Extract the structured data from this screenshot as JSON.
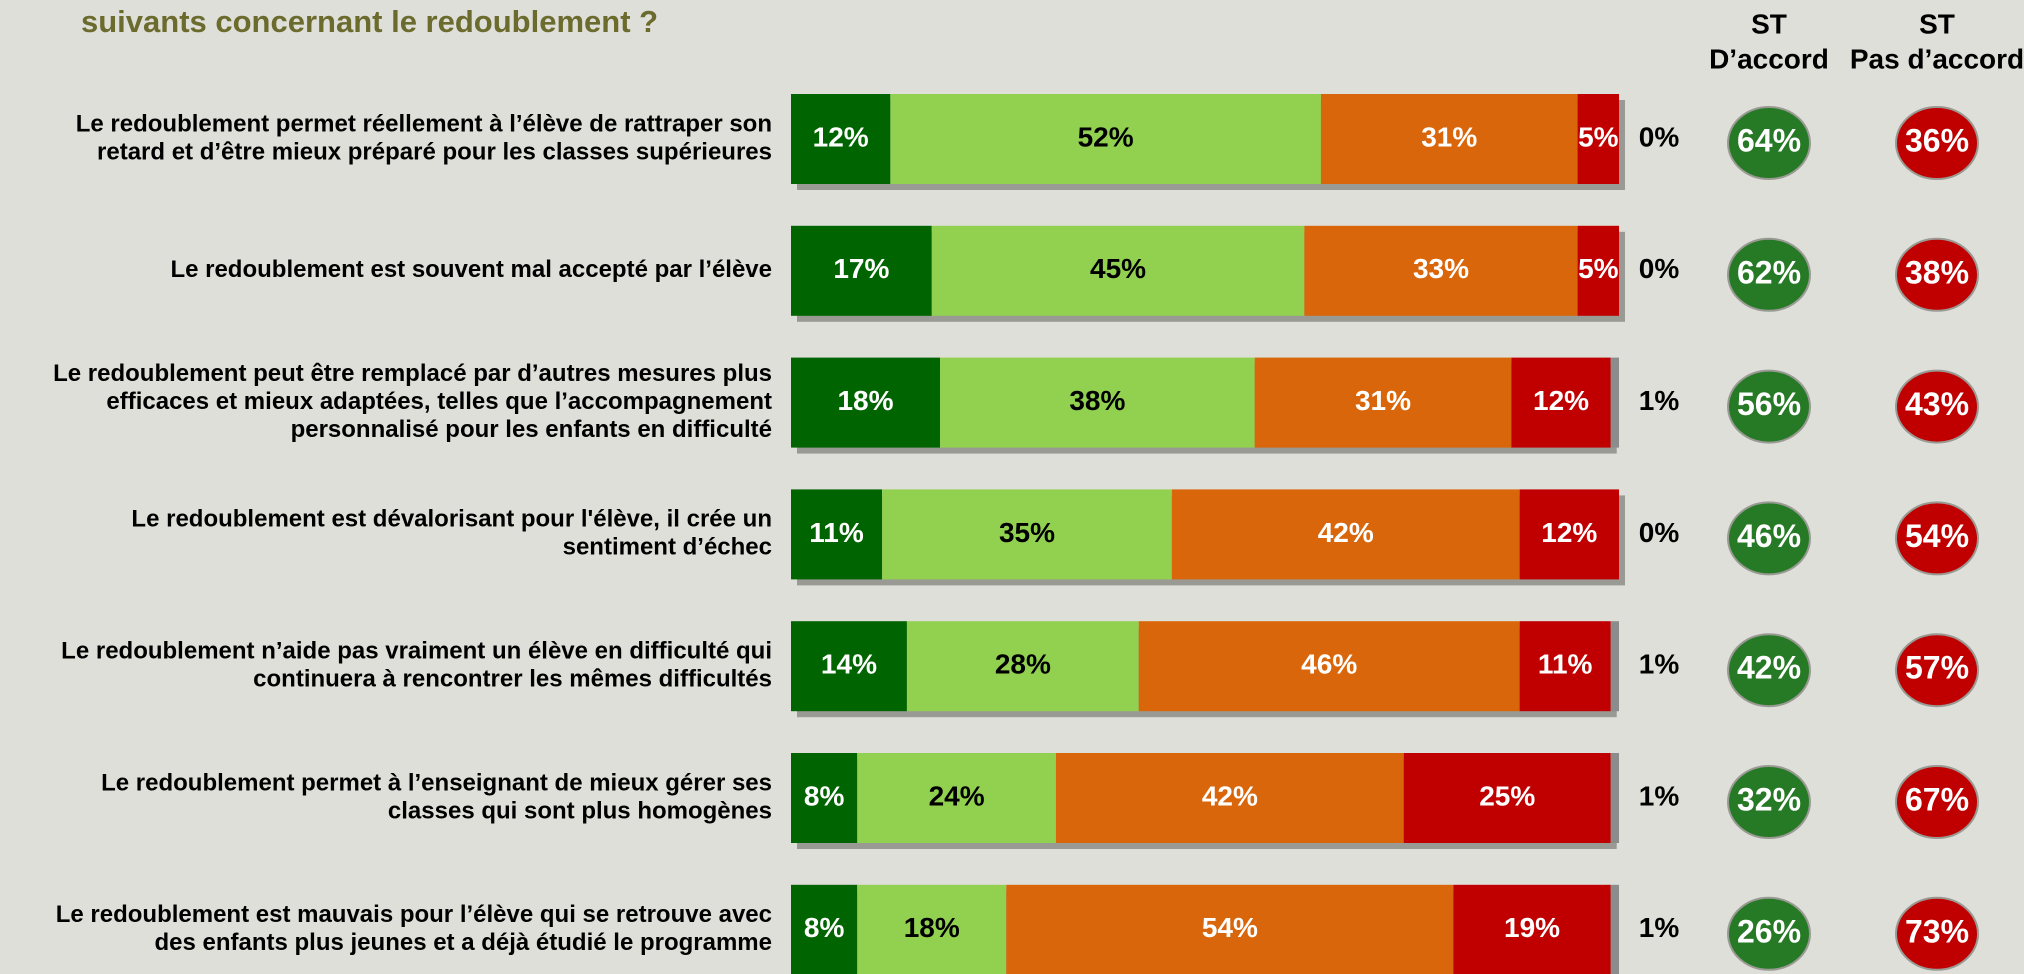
{
  "chart_data": {
    "type": "stacked-bar-horizontal",
    "title": "suivants concernant le  redoublement ?",
    "categories": [
      [
        "Le redoublement permet réellement à l’élève de rattraper son",
        "retard et d’être mieux préparé pour les classes supérieures"
      ],
      [
        "Le redoublement est souvent mal accepté par l’élève"
      ],
      [
        "Le redoublement peut être remplacé par d’autres mesures plus",
        "efficaces et mieux adaptées, telles que l’accompagnement",
        "personnalisé pour les enfants en difficulté"
      ],
      [
        "Le redoublement est dévalorisant pour l'élève, il crée un",
        "sentiment d’échec"
      ],
      [
        "Le redoublement n’aide pas vraiment un élève en difficulté qui",
        "continuera à rencontrer les mêmes difficultés"
      ],
      [
        "Le redoublement permet à l’enseignant de mieux gérer ses",
        "classes qui sont plus homogènes"
      ],
      [
        "Le redoublement est mauvais pour l’élève qui se retrouve avec",
        "des enfants plus jeunes et a déjà étudié le programme"
      ]
    ],
    "xlim": [
      0,
      100
    ],
    "series": [
      {
        "color": "#006400",
        "label_color": "#ffffff",
        "values": [
          12,
          17,
          18,
          11,
          14,
          8,
          8
        ],
        "value_labels": [
          "12%",
          "17%",
          "18%",
          "11%",
          "14%",
          "8%",
          "8%"
        ]
      },
      {
        "color": "#92d050",
        "label_color": "#000000",
        "values": [
          52,
          45,
          38,
          35,
          28,
          24,
          18
        ],
        "value_labels": [
          "52%",
          "45%",
          "38%",
          "35%",
          "28%",
          "24%",
          "18%"
        ]
      },
      {
        "color": "#d9660a",
        "label_color": "#ffffff",
        "values": [
          31,
          33,
          31,
          42,
          46,
          42,
          54
        ],
        "value_labels": [
          "31%",
          "33%",
          "31%",
          "42%",
          "46%",
          "42%",
          "54%"
        ]
      },
      {
        "color": "#c00000",
        "label_color": "#ffffff",
        "values": [
          5,
          5,
          12,
          12,
          11,
          25,
          19
        ],
        "value_labels": [
          "5%",
          "5%",
          "12%",
          "12%",
          "11%",
          "25%",
          "19%"
        ]
      },
      {
        "color": "#8c8c8c",
        "label_color": "#000000",
        "outside": true,
        "values": [
          0,
          0,
          1,
          0,
          1,
          1,
          1
        ],
        "value_labels": [
          "0%",
          "0%",
          "1%",
          "0%",
          "1%",
          "1%",
          "1%"
        ]
      }
    ],
    "summaries": [
      {
        "name": [
          "ST",
          "D’accord"
        ],
        "color": "#267a26",
        "values": [
          64,
          62,
          56,
          46,
          42,
          32,
          26
        ],
        "value_labels": [
          "64%",
          "62%",
          "56%",
          "46%",
          "42%",
          "32%",
          "26%"
        ]
      },
      {
        "name": [
          "ST",
          "Pas d’accord"
        ],
        "color": "#c00000",
        "values": [
          36,
          38,
          43,
          54,
          57,
          67,
          73
        ],
        "value_labels": [
          "36%",
          "38%",
          "43%",
          "54%",
          "57%",
          "67%",
          "73%"
        ]
      }
    ]
  }
}
